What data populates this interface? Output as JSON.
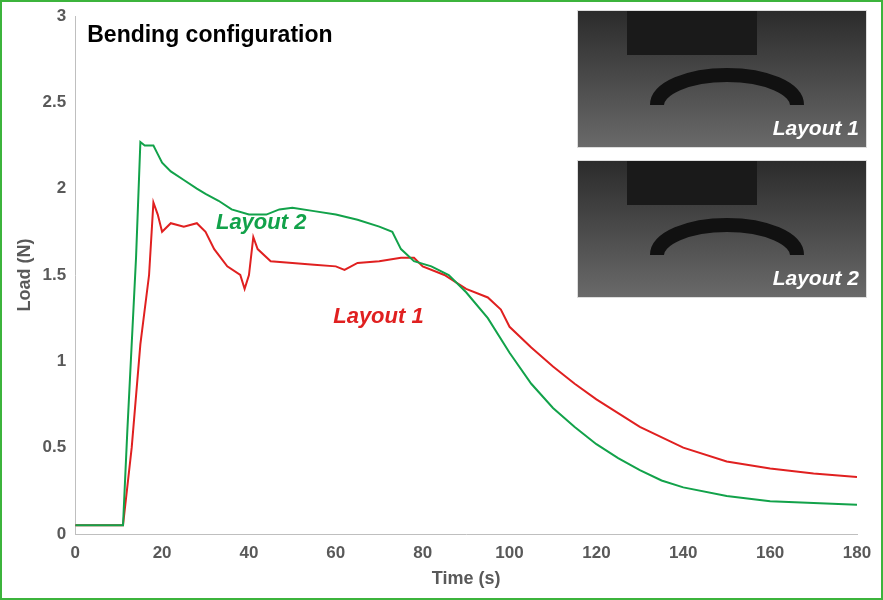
{
  "chart_data": {
    "type": "line",
    "title": "Bending configuration",
    "x_label": "Time (s)",
    "y_label": "Load (N)",
    "xlim": [
      0,
      180
    ],
    "xticks": [
      0,
      20,
      40,
      60,
      80,
      100,
      120,
      140,
      160,
      180
    ],
    "ylim": [
      0,
      3
    ],
    "yticks": [
      0,
      0.5,
      1,
      1.5,
      2,
      2.5,
      3
    ],
    "grid": false,
    "annotations": [
      "Layout 1",
      "Layout 2"
    ],
    "series": [
      {
        "name": "Layout 2",
        "color": "#12a24a",
        "x": [
          0,
          10,
          11,
          12,
          14,
          15,
          16,
          18,
          19,
          20,
          22,
          25,
          28,
          30,
          33,
          36,
          40,
          44,
          47,
          50,
          55,
          60,
          65,
          70,
          73,
          75,
          78,
          82,
          86,
          90,
          95,
          100,
          105,
          110,
          115,
          120,
          125,
          130,
          135,
          140,
          150,
          160,
          170,
          180
        ],
        "values": [
          0.05,
          0.05,
          0.05,
          0.6,
          1.6,
          2.27,
          2.25,
          2.25,
          2.2,
          2.15,
          2.1,
          2.05,
          2.0,
          1.97,
          1.93,
          1.88,
          1.85,
          1.85,
          1.88,
          1.89,
          1.87,
          1.85,
          1.82,
          1.78,
          1.75,
          1.65,
          1.58,
          1.55,
          1.5,
          1.4,
          1.25,
          1.05,
          0.87,
          0.73,
          0.62,
          0.52,
          0.44,
          0.37,
          0.31,
          0.27,
          0.22,
          0.19,
          0.18,
          0.17
        ]
      },
      {
        "name": "Layout 1",
        "color": "#e02020",
        "x": [
          0,
          11,
          13,
          15,
          17,
          18,
          19,
          20,
          22,
          25,
          28,
          30,
          32,
          35,
          38,
          39,
          40,
          41,
          42,
          45,
          50,
          55,
          60,
          62,
          65,
          70,
          75,
          78,
          80,
          85,
          90,
          95,
          98,
          100,
          105,
          110,
          115,
          120,
          125,
          130,
          140,
          150,
          160,
          170,
          180
        ],
        "values": [
          0.05,
          0.05,
          0.5,
          1.1,
          1.5,
          1.92,
          1.85,
          1.75,
          1.8,
          1.78,
          1.8,
          1.75,
          1.65,
          1.55,
          1.5,
          1.42,
          1.5,
          1.72,
          1.65,
          1.58,
          1.57,
          1.56,
          1.55,
          1.53,
          1.57,
          1.58,
          1.6,
          1.6,
          1.55,
          1.5,
          1.42,
          1.37,
          1.3,
          1.2,
          1.08,
          0.97,
          0.87,
          0.78,
          0.7,
          0.62,
          0.5,
          0.42,
          0.38,
          0.35,
          0.33
        ]
      }
    ]
  }
}
